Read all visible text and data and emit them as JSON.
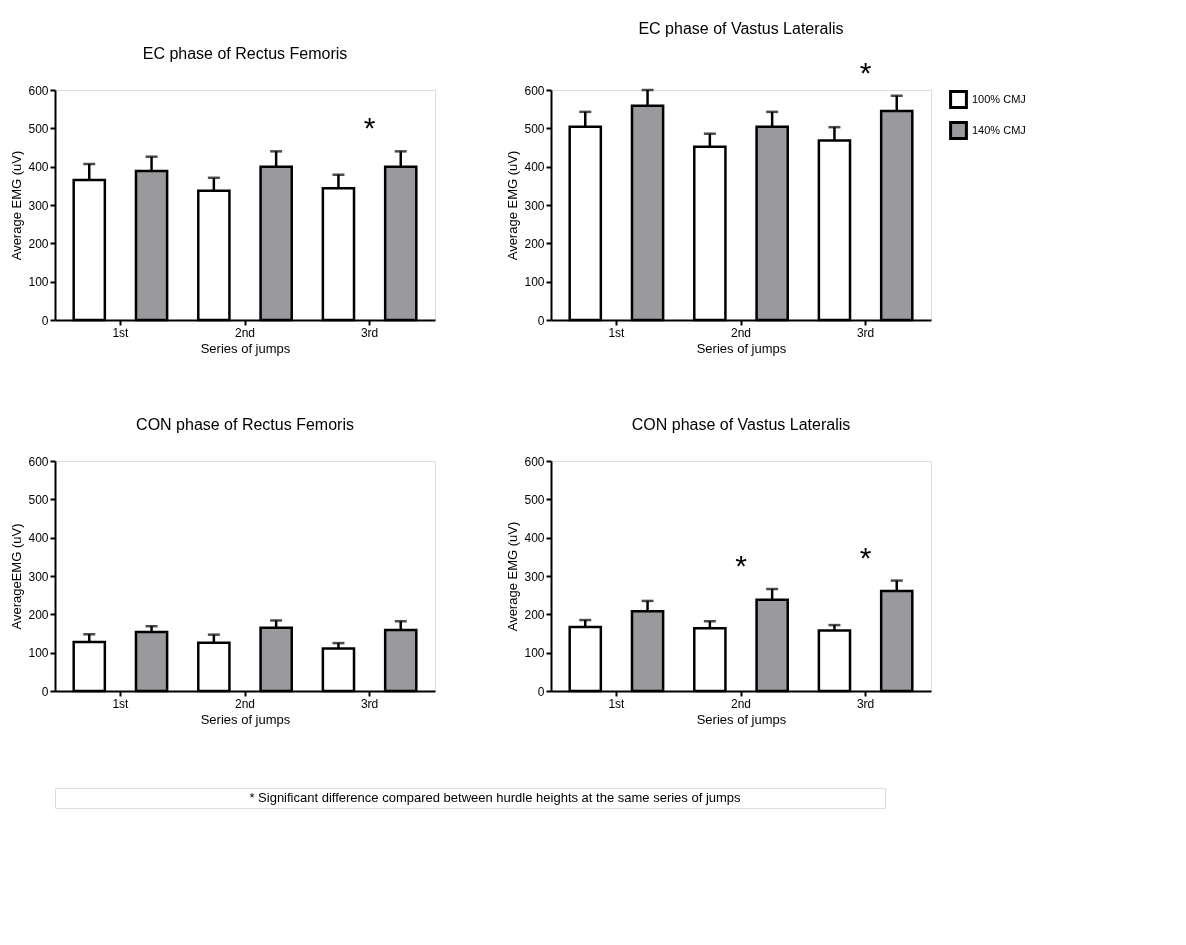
{
  "chart_data": [
    {
      "type": "bar",
      "title": "EC phase of Rectus Femoris",
      "xlabel": "Series of jumps",
      "ylabel": "Average EMG (uV)",
      "categories": [
        "1st",
        "2nd",
        "3rd"
      ],
      "ylim": [
        0,
        600
      ],
      "yticks": [
        0,
        100,
        200,
        300,
        400,
        500,
        600
      ],
      "grid": false,
      "series": [
        {
          "color": "#ffffff",
          "values": [
            365,
            337,
            344
          ],
          "errors": [
            [
              365,
              407
            ],
            [
              337,
              371
            ],
            [
              344,
              379
            ]
          ]
        },
        {
          "color": "#9a9a9e",
          "values": [
            389,
            400,
            400
          ],
          "errors": [
            [
              389,
              426
            ],
            [
              400,
              440
            ],
            [
              400,
              440
            ]
          ]
        }
      ],
      "annotations": [
        "*"
      ]
    },
    {
      "type": "bar",
      "title": "EC phase of Vastus Lateralis",
      "xlabel": "Series of jumps",
      "ylabel": "Average EMG (uV)",
      "categories": [
        "1st",
        "2nd",
        "3rd"
      ],
      "ylim": [
        0,
        600
      ],
      "yticks": [
        0,
        100,
        200,
        300,
        400,
        500,
        600
      ],
      "grid": false,
      "legend": "right",
      "series": [
        {
          "name": "100% CMJ",
          "color": "#ffffff",
          "values": [
            504,
            452,
            468
          ],
          "errors": [
            [
              504,
              543
            ],
            [
              452,
              486
            ],
            [
              468,
              503
            ]
          ]
        },
        {
          "name": "140% CMJ",
          "color": "#9a9a9e",
          "values": [
            559,
            504,
            545
          ],
          "errors": [
            [
              559,
              600
            ],
            [
              504,
              543
            ],
            [
              545,
              585
            ]
          ]
        }
      ],
      "annotations": [
        "*"
      ]
    },
    {
      "type": "bar",
      "title": "CON phase of Rectus Femoris",
      "xlabel": "Series of jumps",
      "ylabel": "AverageEMG (uV)",
      "categories": [
        "1st",
        "2nd",
        "3rd"
      ],
      "ylim": [
        0,
        600
      ],
      "yticks": [
        0,
        100,
        200,
        300,
        400,
        500,
        600
      ],
      "grid": false,
      "series": [
        {
          "color": "#ffffff",
          "values": [
            128,
            126,
            111
          ],
          "errors": [
            [
              128,
              148
            ],
            [
              126,
              147
            ],
            [
              111,
              125
            ]
          ]
        },
        {
          "color": "#9a9a9e",
          "values": [
            154,
            165,
            159
          ],
          "errors": [
            [
              154,
              169
            ],
            [
              165,
              184
            ],
            [
              159,
              182
            ]
          ]
        }
      ]
    },
    {
      "type": "bar",
      "title": "CON phase of Vastus Lateralis",
      "xlabel": "Series of jumps",
      "ylabel": "Average EMG (uV)",
      "categories": [
        "1st",
        "2nd",
        "3rd"
      ],
      "ylim": [
        0,
        600
      ],
      "yticks": [
        0,
        100,
        200,
        300,
        400,
        500,
        600
      ],
      "grid": false,
      "series": [
        {
          "color": "#ffffff",
          "values": [
            167,
            164,
            158
          ],
          "errors": [
            [
              167,
              185
            ],
            [
              164,
              182
            ],
            [
              158,
              172
            ]
          ]
        },
        {
          "color": "#9a9a9e",
          "values": [
            208,
            238,
            261
          ],
          "errors": [
            [
              208,
              235
            ],
            [
              238,
              266
            ],
            [
              261,
              288
            ]
          ]
        }
      ],
      "annotations": [
        "*",
        "*",
        "* Significant difference compared between hurdle heights at the same series of jumps"
      ]
    }
  ]
}
